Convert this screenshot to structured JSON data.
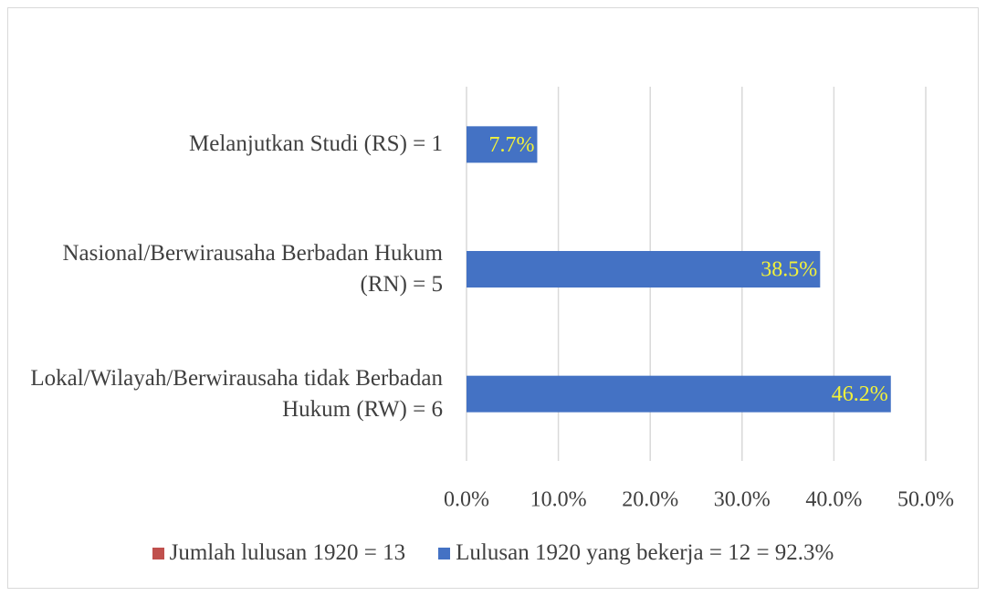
{
  "chart_data": {
    "type": "bar",
    "orientation": "horizontal",
    "categories": [
      "Melanjutkan Studi (RS) = 1",
      "Nasional/Berwirausaha Berbadan Hukum (RN) = 5",
      "Lokal/Wilayah/Berwirausaha tidak Berbadan Hukum (RW) = 6"
    ],
    "series": [
      {
        "name": "Jumlah lulusan 1920 = 13",
        "color": "#c0504d",
        "values": [
          null,
          null,
          null
        ]
      },
      {
        "name": "Lulusan 1920 yang bekerja = 12 = 92.3%",
        "color": "#4472c4",
        "values": [
          7.7,
          38.5,
          46.2
        ],
        "value_labels": [
          "7.7%",
          "38.5%",
          "46.2%"
        ],
        "label_color": "#f2f23a"
      }
    ],
    "xlim": [
      0,
      50
    ],
    "xticks": [
      {
        "value": 0,
        "label": "0.0%"
      },
      {
        "value": 10,
        "label": "10.0%"
      },
      {
        "value": 20,
        "label": "20.0%"
      },
      {
        "value": 30,
        "label": "30.0%"
      },
      {
        "value": 40,
        "label": "40.0%"
      },
      {
        "value": 50,
        "label": "50.0%"
      }
    ],
    "grid": true,
    "legend": "bottom"
  }
}
